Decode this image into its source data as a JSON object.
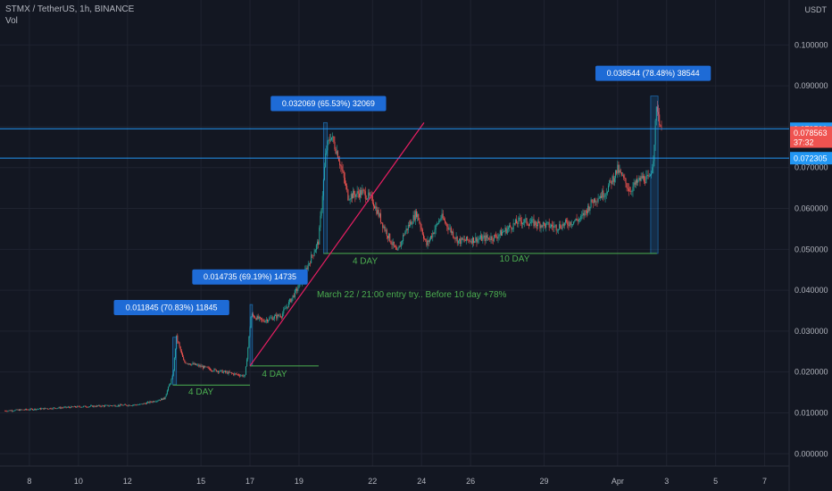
{
  "header": {
    "symbol_line": "STMX / TetherUS, 1h, BINANCE",
    "volume_label": "Vol"
  },
  "colors": {
    "background": "#131722",
    "grid": "#1f2330",
    "axis_text": "#b2b5be",
    "up": "#26a69a",
    "down": "#ef5350",
    "horizontal_line": "#2196f3",
    "callout": "#1e6bd6",
    "annotation_text": "#4caf50",
    "trendline": "#e91e63",
    "price_tag": "#ef5350"
  },
  "chart_data": {
    "type": "candlestick",
    "currency_label": "USDT",
    "ylim": [
      -0.003,
      0.111
    ],
    "y_ticks": [
      "0.100000",
      "0.090000",
      "0.080000",
      "0.070000",
      "0.060000",
      "0.050000",
      "0.040000",
      "0.030000",
      "0.020000",
      "0.010000",
      "0.000000"
    ],
    "x_ticks": [
      {
        "label": "8",
        "day": 8
      },
      {
        "label": "10",
        "day": 10
      },
      {
        "label": "12",
        "day": 12
      },
      {
        "label": "15",
        "day": 15
      },
      {
        "label": "17",
        "day": 17
      },
      {
        "label": "19",
        "day": 19
      },
      {
        "label": "22",
        "day": 22
      },
      {
        "label": "24",
        "day": 24
      },
      {
        "label": "26",
        "day": 26
      },
      {
        "label": "29",
        "day": 29
      },
      {
        "label": "Apr",
        "day": 32
      },
      {
        "label": "3",
        "day": 34
      },
      {
        "label": "5",
        "day": 36
      },
      {
        "label": "7",
        "day": 38
      }
    ],
    "xlim_days": [
      6.8,
      39
    ],
    "price_path": [
      [
        7.0,
        0.0105
      ],
      [
        10.0,
        0.0115
      ],
      [
        12.5,
        0.012
      ],
      [
        13.5,
        0.0135
      ],
      [
        13.85,
        0.019
      ],
      [
        14.0,
        0.0285
      ],
      [
        14.3,
        0.0225
      ],
      [
        15.5,
        0.0205
      ],
      [
        16.8,
        0.019
      ],
      [
        17.05,
        0.034
      ],
      [
        17.5,
        0.0325
      ],
      [
        18.3,
        0.034
      ],
      [
        19.0,
        0.041
      ],
      [
        19.5,
        0.048
      ],
      [
        19.8,
        0.052
      ],
      [
        20.1,
        0.074
      ],
      [
        20.3,
        0.078
      ],
      [
        20.6,
        0.073
      ],
      [
        21.0,
        0.063
      ],
      [
        21.6,
        0.064
      ],
      [
        22.0,
        0.062
      ],
      [
        22.5,
        0.055
      ],
      [
        23.0,
        0.049
      ],
      [
        23.3,
        0.054
      ],
      [
        23.8,
        0.059
      ],
      [
        24.2,
        0.051
      ],
      [
        24.8,
        0.058
      ],
      [
        25.5,
        0.052
      ],
      [
        27.0,
        0.053
      ],
      [
        28.0,
        0.057
      ],
      [
        29.5,
        0.0555
      ],
      [
        30.5,
        0.0575
      ],
      [
        31.0,
        0.062
      ],
      [
        31.5,
        0.064
      ],
      [
        32.0,
        0.0695
      ],
      [
        32.5,
        0.0645
      ],
      [
        33.0,
        0.0675
      ],
      [
        33.3,
        0.067
      ],
      [
        33.45,
        0.072
      ],
      [
        33.6,
        0.0855
      ],
      [
        33.8,
        0.0785
      ]
    ],
    "level_lines": [
      {
        "value": 0.0795,
        "label": "0.079500",
        "color": "#2196f3"
      },
      {
        "value": 0.072305,
        "label": "0.072305",
        "color": "#2196f3"
      }
    ],
    "price_tag": {
      "value": 0.078563,
      "label": "0.078563",
      "countdown": "37:32"
    },
    "callouts": [
      {
        "text": "0.011845 (70.83%) 11845",
        "x_day": 13.8,
        "value": 0.0339
      },
      {
        "text": "0.014735 (69.19%) 14735",
        "x_day": 17.0,
        "value": 0.0414
      },
      {
        "text": "0.032069 (65.53%) 32069",
        "x_day": 20.2,
        "value": 0.0838
      },
      {
        "text": "0.038544 (78.48%) 38544",
        "x_day": 33.45,
        "value": 0.0912
      }
    ],
    "measure_ranges": [
      {
        "x_start": 13.85,
        "x_end": 14.0,
        "y_low": 0.0169,
        "y_high": 0.0285
      },
      {
        "x_start": 17.0,
        "x_end": 17.1,
        "y_low": 0.0215,
        "y_high": 0.0365
      },
      {
        "x_start": 20.0,
        "x_end": 20.15,
        "y_low": 0.049,
        "y_high": 0.081
      },
      {
        "x_start": 33.35,
        "x_end": 33.65,
        "y_low": 0.049,
        "y_high": 0.0875
      }
    ],
    "horizontal_segments": [
      {
        "x_start": 13.85,
        "x_end": 17.0,
        "value": 0.0168
      },
      {
        "x_start": 17.0,
        "x_end": 19.8,
        "value": 0.0215
      },
      {
        "x_start": 20.0,
        "x_end": 33.6,
        "value": 0.049
      }
    ],
    "trendline": {
      "x_start": 17.0,
      "y_start": 0.0215,
      "x_end": 24.1,
      "y_end": 0.081
    },
    "annotations": [
      {
        "text": "4 DAY",
        "x_day": 15.0,
        "value": 0.0145
      },
      {
        "text": "4 DAY",
        "x_day": 18.0,
        "value": 0.0188
      },
      {
        "text": "4 DAY",
        "x_day": 21.7,
        "value": 0.0465
      },
      {
        "text": "10 DAY",
        "x_day": 27.8,
        "value": 0.047
      },
      {
        "text": "March 22 / 21:00 entry try.. Before 10 day +78%",
        "x_day": 23.6,
        "value": 0.0383
      }
    ]
  }
}
